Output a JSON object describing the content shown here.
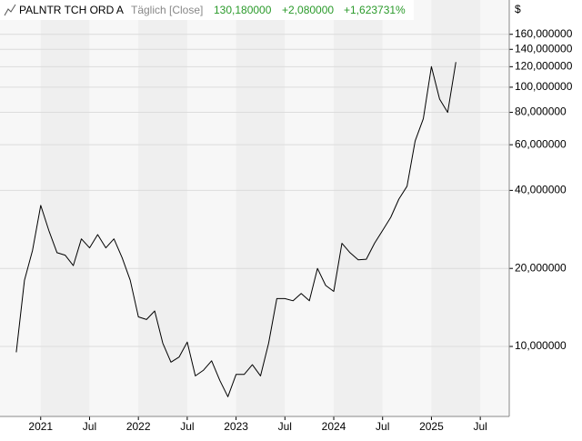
{
  "chart_data": {
    "type": "line",
    "title": "PALNTR TCH ORD A",
    "subtitle": "Täglich [Close]",
    "last_value": "130,180000",
    "change": "+2,080000",
    "change_percent": "+1,623731%",
    "y_unit": "$",
    "log_scale": true,
    "grid": true,
    "x": [
      "2020-10",
      "2020-11",
      "2020-12",
      "2021-01",
      "2021-02",
      "2021-03",
      "2021-04",
      "2021-05",
      "2021-06",
      "2021-07",
      "2021-08",
      "2021-09",
      "2021-10",
      "2021-11",
      "2021-12",
      "2022-01",
      "2022-02",
      "2022-03",
      "2022-04",
      "2022-05",
      "2022-06",
      "2022-07",
      "2022-08",
      "2022-09",
      "2022-10",
      "2022-11",
      "2022-12",
      "2023-01",
      "2023-02",
      "2023-03",
      "2023-04",
      "2023-05",
      "2023-06",
      "2023-07",
      "2023-08",
      "2023-09",
      "2023-10",
      "2023-11",
      "2023-12",
      "2024-01",
      "2024-02",
      "2024-03",
      "2024-04",
      "2024-05",
      "2024-06",
      "2024-07",
      "2024-08",
      "2024-09",
      "2024-10",
      "2024-11",
      "2024-12",
      "2025-01",
      "2025-02",
      "2025-03",
      "2025-04"
    ],
    "series": [
      {
        "name": "PALNTR TCH ORD A",
        "color": "#000000",
        "values": [
          9.5,
          18,
          23.5,
          35,
          28,
          23,
          22.5,
          20.5,
          26,
          24,
          27,
          24,
          26,
          22,
          18,
          13,
          12.7,
          13.7,
          10.3,
          8.7,
          9.1,
          10.4,
          7.7,
          8.1,
          8.8,
          7.4,
          6.4,
          7.8,
          7.8,
          8.5,
          7.7,
          10.3,
          15.3,
          15.3,
          15,
          16,
          15,
          20,
          17.2,
          16.3,
          25,
          23,
          21.6,
          21.7,
          25,
          28,
          31.5,
          37,
          41.5,
          62,
          75.6,
          120,
          90,
          80,
          125
        ]
      }
    ],
    "xlim": [
      "2020-08",
      "2025-10"
    ],
    "xticks": [
      {
        "value": "2021-01",
        "label": "2021"
      },
      {
        "value": "2021-07",
        "label": "Jul"
      },
      {
        "value": "2022-01",
        "label": "2022"
      },
      {
        "value": "2022-07",
        "label": "Jul"
      },
      {
        "value": "2023-01",
        "label": "2023"
      },
      {
        "value": "2023-07",
        "label": "Jul"
      },
      {
        "value": "2024-01",
        "label": "2024"
      },
      {
        "value": "2024-07",
        "label": "Jul"
      },
      {
        "value": "2025-01",
        "label": "2025"
      },
      {
        "value": "2025-07",
        "label": "Jul"
      }
    ],
    "ylim": [
      5.37,
      217
    ],
    "yticks": [
      {
        "value": 10,
        "label": "10,000000"
      },
      {
        "value": 20,
        "label": "20,000000"
      },
      {
        "value": 40,
        "label": "40,000000"
      },
      {
        "value": 60,
        "label": "60,000000"
      },
      {
        "value": 80,
        "label": "80,000000"
      },
      {
        "value": 100,
        "label": "100,000000"
      },
      {
        "value": 120,
        "label": "120,000000"
      },
      {
        "value": 140,
        "label": "140,000000"
      },
      {
        "value": 160,
        "label": "160,000000"
      }
    ]
  }
}
